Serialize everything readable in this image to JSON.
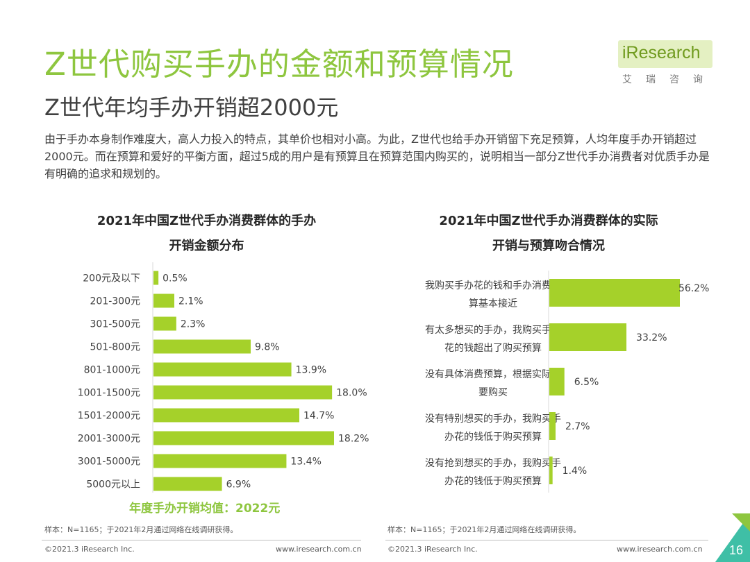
{
  "header": {
    "title": "Z世代购买手办的金额和预算情况",
    "subtitle": "Z世代年均手办开销超2000元",
    "intro": "由于手办本身制作难度大，高人力投入的特点，其单价也相对小高。为此，Z世代也给手办开销留下充足预算，人均年度手办开销超过2000元。而在预算和爱好的平衡方面，超过5成的用户是有预算且在预算范围内购买的，说明相当一部分Z世代手办消费者对优质手办是有明确的追求和规划的。"
  },
  "logo": {
    "wordmark": "iResearch",
    "chinese": "艾瑞咨询"
  },
  "colors": {
    "accent": "#8ec63f",
    "bar": "#a5d12a"
  },
  "chart_data": [
    {
      "type": "bar",
      "orientation": "horizontal",
      "title_lines": [
        "2021年中国Z世代手办消费群体的手办",
        "开销金额分布"
      ],
      "categories": [
        "200元及以下",
        "201-300元",
        "301-500元",
        "501-800元",
        "801-1000元",
        "1001-1500元",
        "1501-2000元",
        "2001-3000元",
        "3001-5000元",
        "5000元以上"
      ],
      "values": [
        0.5,
        2.1,
        2.3,
        9.8,
        13.9,
        18.0,
        14.7,
        18.2,
        13.4,
        6.9
      ],
      "value_labels": [
        "0.5%",
        "2.1%",
        "2.3%",
        "9.8%",
        "13.9%",
        "18.0%",
        "14.7%",
        "18.2%",
        "13.4%",
        "6.9%"
      ],
      "xlim": [
        0,
        18.2
      ],
      "annotation": "年度手办开销均值：2022元",
      "note": "样本：N=1165；于2021年2月通过网络在线调研获得。"
    },
    {
      "type": "bar",
      "orientation": "horizontal",
      "title_lines": [
        "2021年中国Z世代手办消费群体的实际",
        "开销与预算吻合情况"
      ],
      "categories": [
        [
          "我购买手办花的钱和手办消费预",
          "算基本接近"
        ],
        [
          "有太多想买的手办，我购买手办",
          "花的钱超出了购买预算"
        ],
        [
          "没有具体消费预算，根据实际需",
          "要购买"
        ],
        [
          "没有特别想买的手办，我购买手",
          "办花的钱低于购买预算"
        ],
        [
          "没有抢到想买的手办，我购买手",
          "办花的钱低于购买预算"
        ]
      ],
      "values": [
        56.2,
        33.2,
        6.5,
        2.7,
        1.4
      ],
      "value_labels": [
        "56.2%",
        "33.2%",
        "6.5%",
        "2.7%",
        "1.4%"
      ],
      "xlim": [
        0,
        56.2
      ],
      "note": "样本：N=1165；于2021年2月通过网络在线调研获得。"
    }
  ],
  "footer": {
    "copyright_left": "©2021.3 iResearch Inc.",
    "url_left": "www.iresearch.com.cn",
    "copyright_right": "©2021.3 iResearch Inc.",
    "url_right": "www.iresearch.com.cn",
    "page_number": "16"
  }
}
